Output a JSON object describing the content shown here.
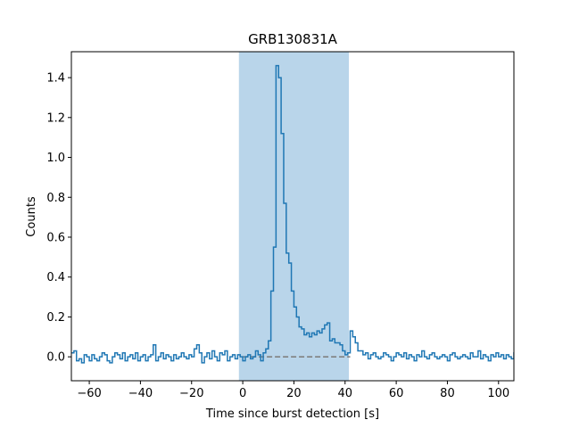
{
  "chart_data": {
    "type": "line",
    "title": "GRB130831A",
    "xlabel": "Time since burst detection [s]",
    "ylabel": "Counts",
    "xlim": [
      -67,
      106
    ],
    "ylim": [
      -0.12,
      1.53
    ],
    "xticks": [
      -60,
      -40,
      -20,
      0,
      20,
      40,
      60,
      80,
      100
    ],
    "yticks": [
      0.0,
      0.2,
      0.4,
      0.6,
      0.8,
      1.0,
      1.2,
      1.4
    ],
    "xtick_labels": [
      "−60",
      "−40",
      "−20",
      "0",
      "20",
      "40",
      "60",
      "80",
      "100"
    ],
    "ytick_labels": [
      "0.0",
      "0.2",
      "0.4",
      "0.6",
      "0.8",
      "1.0",
      "1.2",
      "1.4"
    ],
    "shaded_region": {
      "x": [
        -1.5,
        41.5
      ],
      "color": "#b9d5ea"
    },
    "baseline": {
      "y": 0.0,
      "x": [
        0,
        42
      ],
      "style": "dashed",
      "color": "#808080"
    },
    "series": [
      {
        "color": "#1f77b4",
        "drawstyle": "steps",
        "bin_width": 1,
        "x_start": -67,
        "values": [
          0.02,
          0.03,
          -0.02,
          -0.01,
          -0.03,
          0.01,
          0.0,
          -0.02,
          0.01,
          -0.01,
          -0.02,
          0.0,
          0.02,
          0.01,
          -0.02,
          -0.03,
          0.0,
          0.02,
          0.01,
          -0.01,
          0.02,
          -0.02,
          0.0,
          0.01,
          -0.01,
          0.02,
          -0.02,
          0.0,
          0.01,
          -0.02,
          0.0,
          0.01,
          0.06,
          -0.02,
          0.0,
          0.02,
          -0.01,
          0.01,
          0.0,
          -0.02,
          0.01,
          -0.01,
          0.0,
          0.02,
          0.0,
          -0.01,
          0.01,
          0.0,
          0.04,
          0.06,
          0.02,
          -0.03,
          0.0,
          0.02,
          -0.01,
          0.03,
          0.0,
          -0.02,
          0.02,
          0.01,
          0.03,
          -0.02,
          0.0,
          0.01,
          -0.01,
          0.01,
          0.0,
          -0.02,
          0.0,
          0.01,
          -0.01,
          0.0,
          0.03,
          0.01,
          -0.02,
          0.02,
          0.04,
          0.08,
          0.33,
          0.55,
          1.46,
          1.4,
          1.12,
          0.77,
          0.52,
          0.47,
          0.33,
          0.25,
          0.2,
          0.15,
          0.14,
          0.11,
          0.12,
          0.1,
          0.12,
          0.11,
          0.13,
          0.12,
          0.14,
          0.16,
          0.17,
          0.08,
          0.09,
          0.07,
          0.07,
          0.06,
          0.03,
          0.01,
          0.02,
          0.13,
          0.1,
          0.07,
          0.03,
          0.03,
          0.01,
          0.02,
          -0.01,
          0.01,
          0.02,
          0.0,
          -0.01,
          0.0,
          0.02,
          0.01,
          0.0,
          -0.02,
          0.0,
          0.02,
          0.01,
          0.0,
          0.02,
          -0.01,
          0.01,
          0.0,
          -0.02,
          0.01,
          0.0,
          0.03,
          0.0,
          -0.01,
          0.01,
          0.02,
          0.0,
          -0.01,
          0.0,
          0.01,
          0.0,
          -0.02,
          0.01,
          0.02,
          0.0,
          -0.01,
          0.0,
          0.01,
          0.0,
          -0.01,
          0.02,
          0.0,
          0.0,
          0.03,
          -0.01,
          0.01,
          0.0,
          -0.02,
          0.01,
          0.0,
          0.02,
          0.0,
          0.01,
          -0.01,
          0.01,
          0.0,
          -0.01,
          0.02
        ]
      }
    ]
  }
}
